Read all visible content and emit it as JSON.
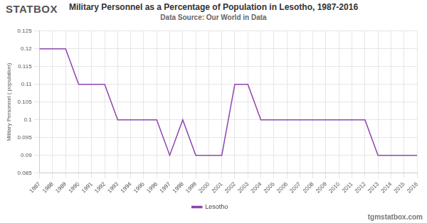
{
  "branding": {
    "logo": "STATBOX",
    "site": "tgmstatbox.com"
  },
  "chart_data": {
    "type": "line",
    "title": "Military Personnel as a Percentage of Population in Lesotho, 1987-2016",
    "subtitle": "Data Source: Our World in Data",
    "y_label": "Military Personnel ( population)",
    "categories": [
      "1987",
      "1988",
      "1989",
      "1990",
      "1991",
      "1992",
      "1993",
      "1994",
      "1995",
      "1996",
      "1997",
      "1998",
      "1999",
      "2000",
      "2001",
      "2002",
      "2003",
      "2004",
      "2005",
      "2006",
      "2007",
      "2008",
      "2009",
      "2010",
      "2011",
      "2012",
      "2013",
      "2014",
      "2015",
      "2016"
    ],
    "series": [
      {
        "name": "Lesotho",
        "color": "#8e44ad",
        "values": [
          0.12,
          0.12,
          0.12,
          0.11,
          0.11,
          0.11,
          0.1,
          0.1,
          0.1,
          0.1,
          0.09,
          0.1,
          0.09,
          0.09,
          0.09,
          0.11,
          0.11,
          0.1,
          0.1,
          0.1,
          0.1,
          0.1,
          0.1,
          0.1,
          0.1,
          0.1,
          0.09,
          0.09,
          0.09,
          0.09
        ]
      }
    ],
    "ylim": [
      0.085,
      0.125
    ],
    "yticks": [
      0.085,
      0.09,
      0.095,
      0.1,
      0.105,
      0.11,
      0.115,
      0.12,
      0.125
    ],
    "grid": true,
    "legend": "bottom"
  }
}
